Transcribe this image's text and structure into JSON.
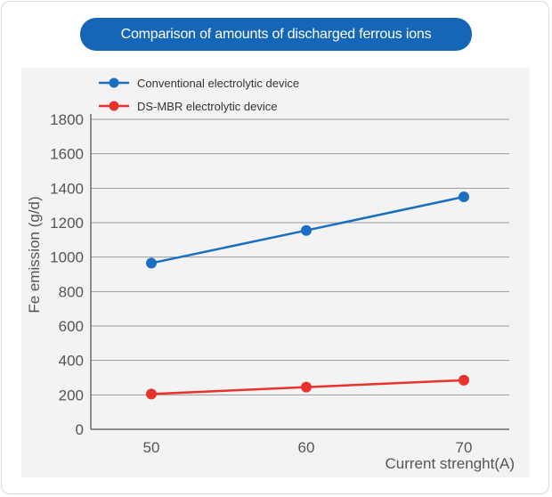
{
  "title": "Comparison of amounts of discharged ferrous ions",
  "chart_data": {
    "type": "line",
    "title": "Comparison of amounts of discharged ferrous ions",
    "xlabel": "Current strenght(A)",
    "ylabel": "Fe emission (g/d)",
    "categories": [
      "50",
      "60",
      "70"
    ],
    "yticks": [
      "0",
      "200",
      "400",
      "600",
      "800",
      "1000",
      "1200",
      "1400",
      "1600",
      "1800"
    ],
    "ylim": [
      0,
      1800
    ],
    "grid": "horizontal",
    "legend_position": "top-left",
    "series": [
      {
        "name": "Conventional electrolytic device",
        "color": "#1a6fc2",
        "values": [
          965,
          1155,
          1350
        ]
      },
      {
        "name": "DS-MBR electrolytic device",
        "color": "#e8322d",
        "values": [
          205,
          245,
          285
        ]
      }
    ]
  }
}
